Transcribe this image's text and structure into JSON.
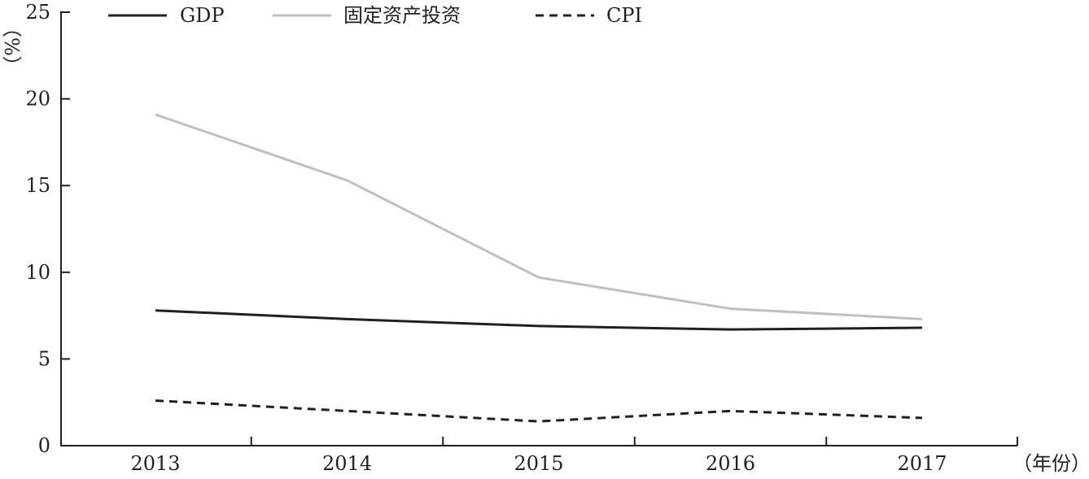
{
  "chart_data": {
    "type": "line",
    "title": "",
    "xlabel": "（年份）",
    "ylabel": "（%）",
    "categories": [
      "2013",
      "2014",
      "2015",
      "2016",
      "2017"
    ],
    "ylim": [
      0,
      25
    ],
    "yticks": [
      0,
      5,
      10,
      15,
      20,
      25
    ],
    "grid": false,
    "legend_position": "top",
    "series": [
      {
        "name": "GDP",
        "values": [
          7.8,
          7.3,
          6.9,
          6.7,
          6.8
        ],
        "color": "#231f20",
        "style": "solid"
      },
      {
        "name": "固定资产投资",
        "values": [
          19.1,
          15.3,
          9.7,
          7.9,
          7.3
        ],
        "color": "#bfbfbf",
        "style": "solid"
      },
      {
        "name": "CPI",
        "values": [
          2.6,
          2.0,
          1.4,
          2.0,
          1.6
        ],
        "color": "#231f20",
        "style": "dashed"
      }
    ]
  }
}
